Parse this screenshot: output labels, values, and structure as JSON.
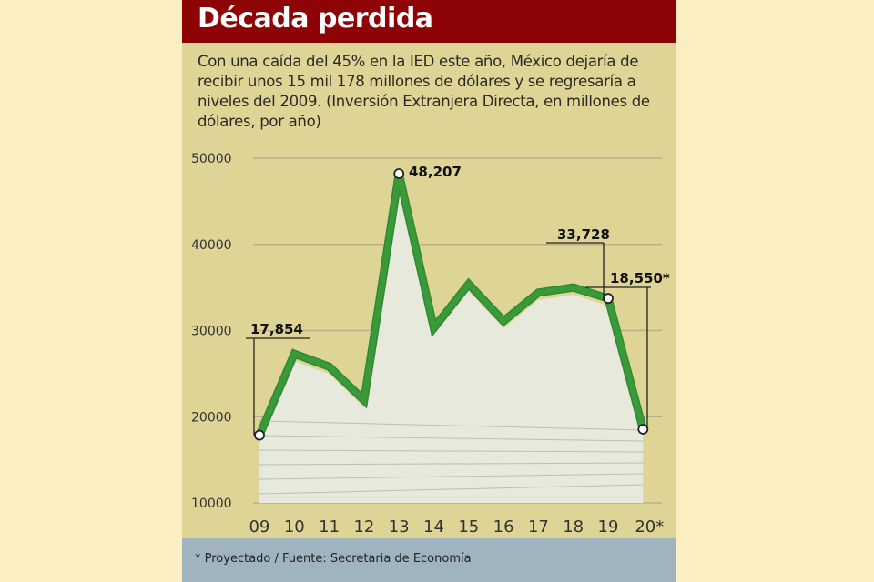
{
  "header": {
    "title": "Década perdida"
  },
  "subtitle": "Con una caída del 45% en la IED este año, México dejaría de recibir unos 15 mil 178 millones de dólares y se regresaría a niveles del 2009. (Inversión Extranjera Directa, en millones de dólares, por año)",
  "footer": {
    "note": "* Proyectado / Fuente: Secretaria de Economía"
  },
  "colors": {
    "line": "#3a9a3a",
    "header": "#8e0306",
    "panel": "#ddd496",
    "footer": "#9fb4bf"
  },
  "chart_data": {
    "type": "line",
    "title": "Década perdida",
    "categories": [
      "09",
      "10",
      "11",
      "12",
      "13",
      "14",
      "15",
      "16",
      "17",
      "18",
      "19",
      "20*"
    ],
    "series": [
      {
        "values": [
          17854,
          27300,
          25800,
          21900,
          48207,
          30300,
          35400,
          31100,
          34400,
          35000,
          33728,
          18550
        ]
      }
    ],
    "yticks": [
      "50000",
      "40000",
      "30000",
      "20000",
      "10000"
    ],
    "ylim": [
      10000,
      50000
    ],
    "grid": true,
    "data_labels": [
      {
        "index": 0,
        "text": "17,854"
      },
      {
        "index": 4,
        "text": "48,207"
      },
      {
        "index": 10,
        "text": "33,728"
      },
      {
        "index": 11,
        "text": "18,550*"
      }
    ]
  }
}
